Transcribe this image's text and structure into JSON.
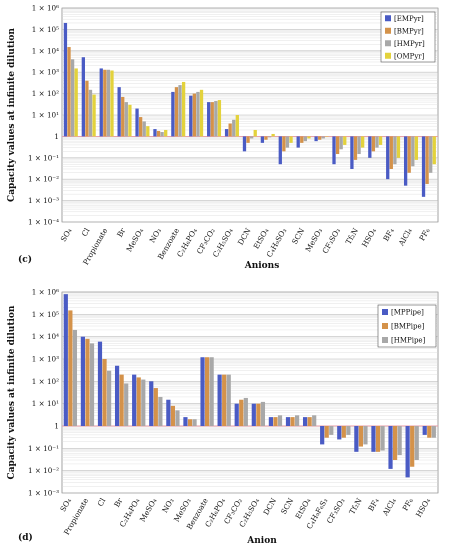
{
  "chart_data": [
    {
      "type": "bar",
      "panel_label": "(c)",
      "ylabel": "Capacity values at infinite dilution",
      "xlabel": "Anions",
      "log_scale": true,
      "baseline": 1,
      "ylim": [
        0.0001,
        1000000
      ],
      "y_ticks": [
        "1 × 10⁻⁴",
        "1 × 10⁻³",
        "1 × 10⁻²",
        "1 × 10⁻¹",
        "1",
        "1 × 10¹",
        "1 × 10²",
        "1 × 10³",
        "1 × 10⁴",
        "1 × 10⁵",
        "1 × 10⁶"
      ],
      "grid": true,
      "legend_position": "top-right",
      "categories": [
        "SO₄",
        "Cl",
        "Propionate",
        "Br",
        "MeSO₄",
        "NO₃",
        "Benzoate",
        "C₂H₆PO₄",
        "CF₃CO₂",
        "C₂H₅SO₄",
        "DCN",
        "EtSO₄",
        "C₄H₉SO₃",
        "SCN",
        "MeSO₃",
        "CF₃SO₃",
        "Tf₂N",
        "HSO₄",
        "BF₄",
        "AlCl₄",
        "PF₆"
      ],
      "series": [
        {
          "name": "[EMPyr]",
          "color": "#4a5bc4",
          "values": [
            200000,
            5000,
            1500,
            200,
            20,
            2.2,
            120,
            80,
            40,
            2.2,
            0.2,
            0.5,
            0.05,
            0.3,
            0.6,
            0.05,
            0.03,
            0.1,
            0.01,
            0.005,
            0.0015
          ]
        },
        {
          "name": "[BMPyr]",
          "color": "#d4924a",
          "values": [
            15000,
            400,
            1300,
            70,
            8,
            1.8,
            200,
            100,
            40,
            4,
            0.5,
            0.7,
            0.2,
            0.5,
            0.7,
            0.15,
            0.08,
            0.2,
            0.03,
            0.02,
            0.006
          ]
        },
        {
          "name": "[HMPyr]",
          "color": "#a8a8a8",
          "values": [
            4000,
            150,
            1300,
            40,
            5,
            1.6,
            250,
            120,
            45,
            6,
            0.8,
            0.9,
            0.3,
            0.6,
            0.8,
            0.25,
            0.15,
            0.3,
            0.05,
            0.04,
            0.02
          ]
        },
        {
          "name": "[OMPyr]",
          "color": "#e3d23c",
          "values": [
            1500,
            90,
            1200,
            30,
            3,
            2,
            350,
            150,
            50,
            10,
            2,
            1.3,
            0.5,
            0.8,
            1.0,
            0.4,
            0.3,
            0.4,
            0.1,
            0.08,
            0.05
          ]
        }
      ]
    },
    {
      "type": "bar",
      "panel_label": "(d)",
      "ylabel": "Capacity values at infinite dilution",
      "xlabel": "Anion",
      "log_scale": true,
      "baseline": 1,
      "ylim": [
        0.001,
        1000000
      ],
      "y_ticks": [
        "1 × 10⁻³",
        "1 × 10⁻²",
        "1 × 10⁻¹",
        "1",
        "1 × 10¹",
        "1 × 10²",
        "1 × 10³",
        "1 × 10⁴",
        "1 × 10⁵",
        "1 × 10⁶"
      ],
      "grid": true,
      "legend_position": "top-right",
      "categories": [
        "SO₄",
        "Propionate",
        "Cl",
        "Br",
        "C₂H₆PO₄",
        "MeSO₄",
        "NO₃",
        "MeSO₃",
        "Benzoate",
        "C₂H₆PO₄",
        "CF₃CO₂",
        "C₂H₅SO₄",
        "DCN",
        "SCN",
        "EtSO₄",
        "C₄H₉F₆S₃",
        "CF₃SO₃",
        "Tf₂N",
        "BF₄",
        "AlCl₄",
        "PF₆",
        "HSO₄"
      ],
      "series": [
        {
          "name": "[MPPipe]",
          "color": "#4a5bc4",
          "values": [
            800000,
            10000,
            6000,
            500,
            200,
            100,
            15,
            2.5,
            1200,
            200,
            10,
            10,
            2.5,
            2.5,
            2.5,
            0.15,
            0.25,
            0.07,
            0.07,
            0.012,
            0.005,
            0.4
          ]
        },
        {
          "name": "[BMPipe]",
          "color": "#d4924a",
          "values": [
            150000,
            8000,
            1000,
            200,
            150,
            50,
            8,
            2,
            1200,
            200,
            15,
            10,
            2.5,
            2.5,
            2.5,
            0.3,
            0.3,
            0.12,
            0.07,
            0.03,
            0.015,
            0.3
          ]
        },
        {
          "name": "[HMPipe]",
          "color": "#a8a8a8",
          "values": [
            20000,
            5000,
            300,
            80,
            120,
            20,
            5,
            2,
            1200,
            200,
            18,
            12,
            3,
            3,
            3,
            0.4,
            0.4,
            0.15,
            0.08,
            0.05,
            0.03,
            0.3
          ]
        }
      ]
    }
  ]
}
